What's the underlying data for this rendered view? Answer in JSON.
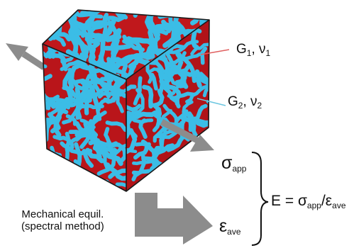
{
  "phase1": {
    "modulus": "G",
    "modulus_sub": "1",
    "poisson": "ν",
    "poisson_sub": "1",
    "color": "#c0181c"
  },
  "phase2": {
    "modulus": "G",
    "modulus_sub": "2",
    "poisson": "ν",
    "poisson_sub": "2",
    "color": "#3bbde6"
  },
  "stress": {
    "symbol": "σ",
    "sub": "app"
  },
  "strain": {
    "symbol": "ε",
    "sub": "ave"
  },
  "equation": {
    "lhs": "E = σ",
    "sub1": "app",
    "slash": "/ε",
    "sub2": "ave"
  },
  "caption": {
    "line1": "Mechanical equil.",
    "line2": "(spectral method)"
  },
  "colors": {
    "arrow": "#8c8c8c",
    "edge": "#1a1a1a",
    "leader1": "#e06060",
    "leader2": "#6cc6df"
  }
}
